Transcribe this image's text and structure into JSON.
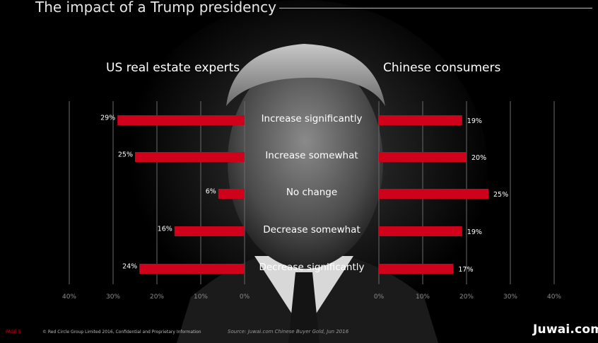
{
  "title": "The impact of a Trump presidency",
  "colors": {
    "bar": "#d0021b",
    "grid": "#6a6a6a",
    "background": "#000000"
  },
  "left_panel": {
    "title": "US real estate experts"
  },
  "right_panel": {
    "title": "Chinese consumers"
  },
  "categories": [
    "Increase significantly",
    "Increase somewhat",
    "No change",
    "Decrease somewhat",
    "Decrease significantly"
  ],
  "chart_data": [
    {
      "type": "bar",
      "orientation": "horizontal",
      "direction": "leftward",
      "title": "US real estate experts",
      "categories": [
        "Increase significantly",
        "Increase somewhat",
        "No change",
        "Decrease somewhat",
        "Decrease significantly"
      ],
      "values": [
        29,
        25,
        6,
        16,
        24
      ],
      "value_labels": [
        "29%",
        "25%",
        "6%",
        "16%",
        "24%"
      ],
      "xlim": [
        0,
        40
      ],
      "ticks": [
        "40%",
        "30%",
        "20%",
        "10%",
        "0%"
      ],
      "grid": true
    },
    {
      "type": "bar",
      "orientation": "horizontal",
      "direction": "rightward",
      "title": "Chinese consumers",
      "categories": [
        "Increase significantly",
        "Increase somewhat",
        "No change",
        "Decrease somewhat",
        "Decrease significantly"
      ],
      "values": [
        19,
        20,
        25,
        19,
        17
      ],
      "value_labels": [
        "19%",
        "20%",
        "25%",
        "19%",
        "17%"
      ],
      "xlim": [
        0,
        40
      ],
      "ticks": [
        "0%",
        "10%",
        "20%",
        "30%",
        "40%"
      ],
      "grid": true
    }
  ],
  "footer": {
    "page": "PAGE 5",
    "copyright": "© Red Circle Group Limited 2016, Confidential and Proprietary Information",
    "source": "Source: Juwai.com Chinese Buyer Gold, Jun 2016",
    "brand": "Juwai.com"
  }
}
